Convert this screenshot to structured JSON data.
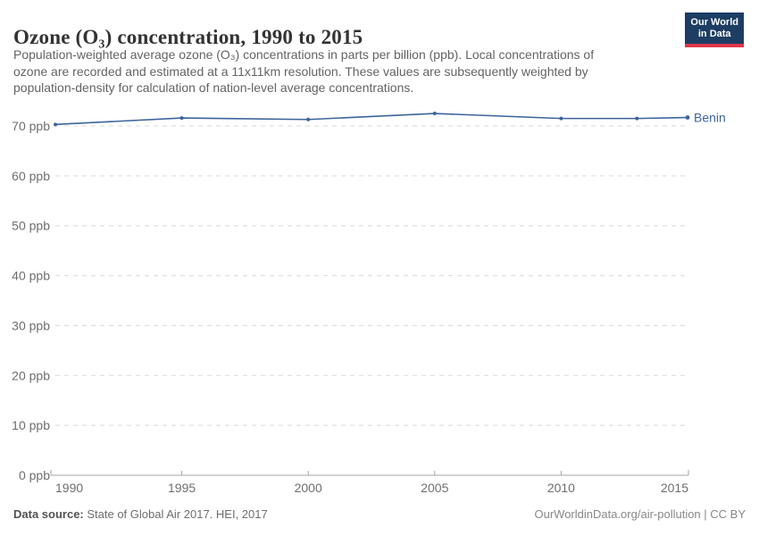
{
  "header": {
    "title": "Ozone (O₃) concentration, 1990 to 2015",
    "subtitle_lines": [
      "Population-weighted average ozone (O₃) concentrations in parts per billion (ppb). Local concentrations of",
      "ozone are recorded and estimated at a 11x11km resolution. These values are subsequently weighted by",
      "population-density for calculation of nation-level average concentrations."
    ],
    "logo": {
      "line1": "Our World",
      "line2": "in Data",
      "bg_color": "#1d3d63",
      "accent_color": "#e0364a"
    }
  },
  "chart_data": {
    "type": "line",
    "title": "Ozone (O₃) concentration, 1990 to 2015",
    "x": [
      1990,
      1995,
      2000,
      2005,
      2010,
      2013,
      2015
    ],
    "series": [
      {
        "name": "Benin",
        "values": [
          70.3,
          71.6,
          71.3,
          72.5,
          71.5,
          71.5,
          71.7
        ],
        "color": "#3d649c"
      }
    ],
    "xlabel": "",
    "ylabel": "",
    "ylim": [
      0,
      70
    ],
    "yticks": [
      0,
      10,
      20,
      30,
      40,
      50,
      60,
      70
    ],
    "ytick_format": "{v} ppb",
    "xticks": [
      1990,
      1995,
      2000,
      2005,
      2010,
      2015
    ],
    "grid": "horizontal-dashed",
    "legend_position": "right-of-line-end",
    "colors": {
      "grid": "#d9d9d9",
      "axis": "#a5a5a5",
      "tick_label": "#6e6e6e"
    }
  },
  "footer": {
    "datasource_label": "Data source:",
    "datasource_value": " State of Global Air 2017. HEI, 2017",
    "credit": "OurWorldinData.org/air-pollution | CC BY"
  }
}
